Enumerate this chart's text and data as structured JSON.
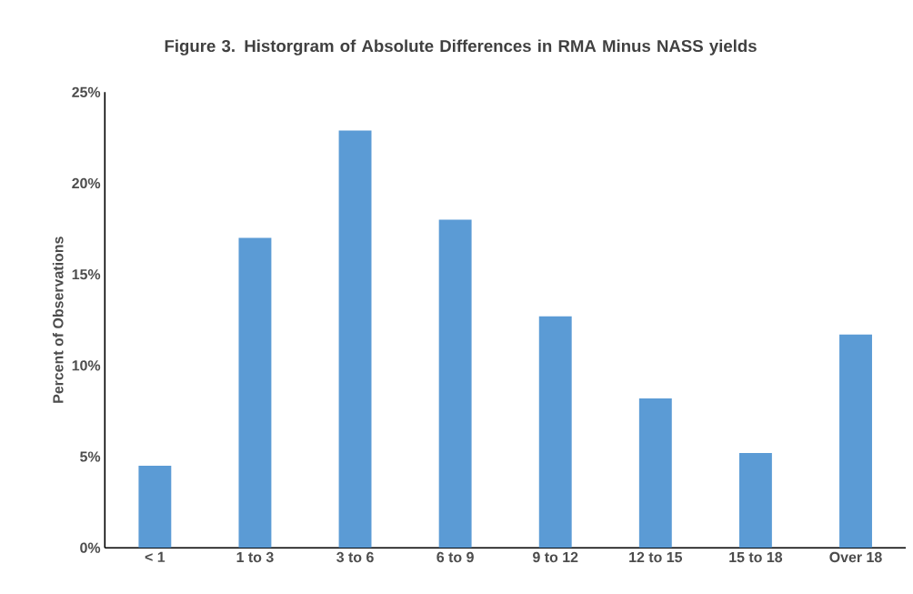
{
  "chart_data": {
    "type": "bar",
    "title": "Figure 3.  Historgram of Absolute Differences in RMA Minus NASS yields",
    "ylabel": "Percent of Observations",
    "categories": [
      "< 1",
      "1 to 3",
      "3 to 6",
      "6 to 9",
      "9 to 12",
      "12 to 15",
      "15 to 18",
      "Over 18"
    ],
    "values": [
      4.5,
      17.0,
      22.9,
      18.0,
      12.7,
      8.2,
      5.2,
      11.7
    ],
    "color": "#5b9bd5",
    "ylim": [
      0,
      25
    ],
    "yticks": [
      {
        "value": 0,
        "label": "0%"
      },
      {
        "value": 5,
        "label": "5%"
      },
      {
        "value": 10,
        "label": "10%"
      },
      {
        "value": 15,
        "label": "15%"
      },
      {
        "value": 20,
        "label": "20%"
      },
      {
        "value": 25,
        "label": "25%"
      }
    ],
    "grid": false
  }
}
